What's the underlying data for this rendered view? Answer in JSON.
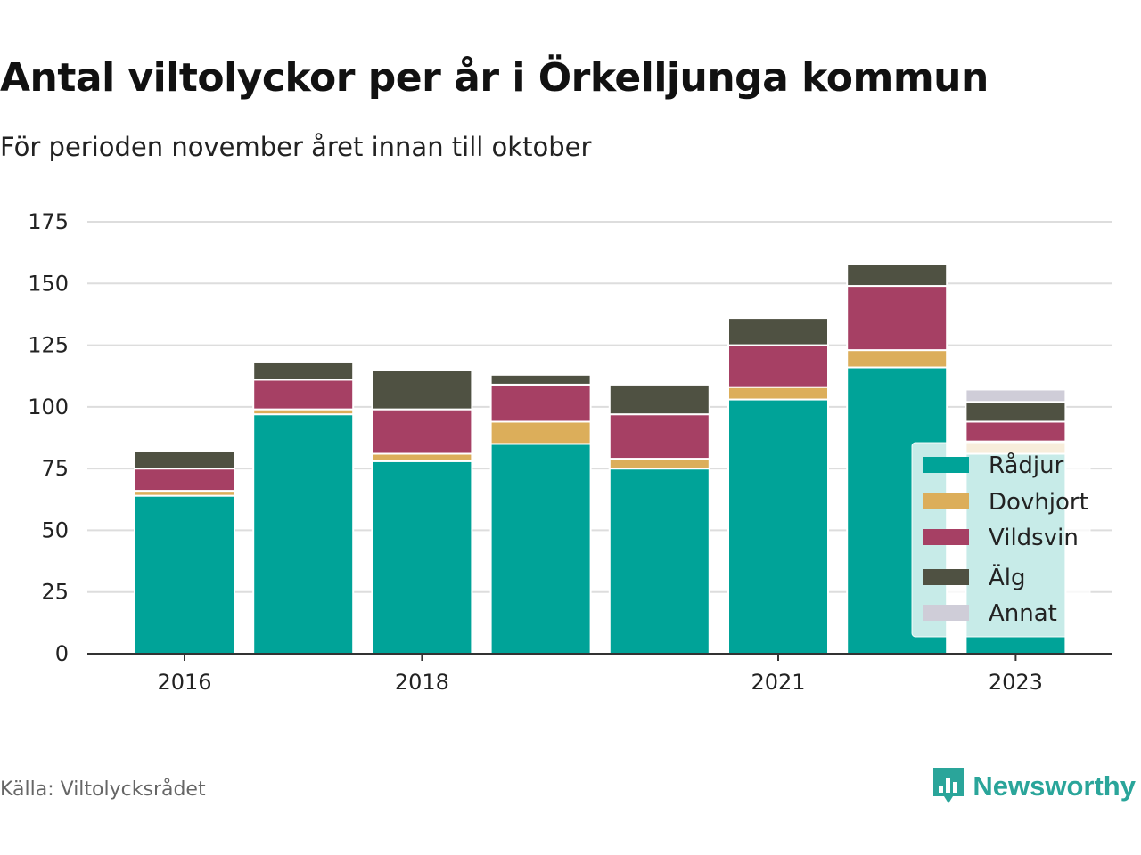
{
  "header": {
    "title": "Antal viltolyckor per år i Örkelljunga kommun",
    "subtitle": "För perioden november året innan till oktober"
  },
  "footer": {
    "source": "Källa: Viltolycksrådet",
    "brand": "Newsworthy",
    "brand_icon": "bar-chart-logo-icon",
    "brand_color": "#2aa59a"
  },
  "chart_data": {
    "type": "bar",
    "stacked": true,
    "categories": [
      "2016",
      "2017",
      "2018",
      "2019",
      "2020",
      "2021",
      "2022",
      "2023"
    ],
    "x_tick_labels": [
      "2016",
      "",
      "2018",
      "",
      "",
      "2021",
      "",
      "2023"
    ],
    "y_ticks": [
      0,
      25,
      50,
      75,
      100,
      125,
      150,
      175
    ],
    "ylim": [
      0,
      175
    ],
    "grid": true,
    "legend_position": "right",
    "series": [
      {
        "name": "Rådjur",
        "color": "#00a398",
        "values": [
          64,
          97,
          78,
          85,
          75,
          103,
          116,
          81
        ]
      },
      {
        "name": "Dovhjort",
        "color": "#dcae5a",
        "values": [
          2,
          2,
          3,
          9,
          4,
          5,
          7,
          5
        ]
      },
      {
        "name": "Vildsvin",
        "color": "#a64064",
        "values": [
          9,
          12,
          18,
          15,
          18,
          17,
          26,
          8
        ]
      },
      {
        "name": "Älg",
        "color": "#4f5142",
        "values": [
          7,
          7,
          16,
          4,
          12,
          11,
          9,
          8
        ]
      },
      {
        "name": "Annat",
        "color": "#cfcdd8",
        "values": [
          0,
          0,
          0,
          0,
          0,
          0,
          0,
          5
        ]
      }
    ]
  }
}
